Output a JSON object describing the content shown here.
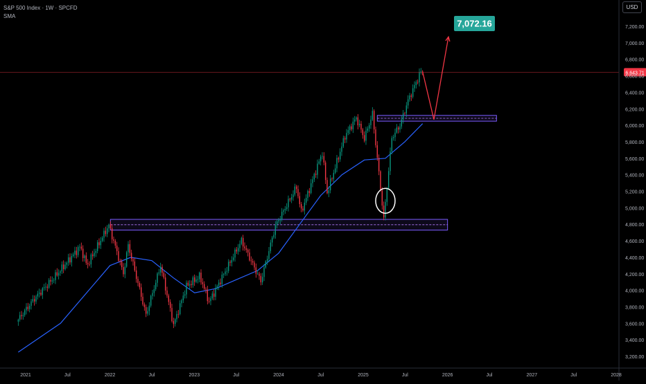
{
  "header": {
    "title": "S&P 500 Index · 1W · SPCFD",
    "indicator": "SMA",
    "currency": "USD"
  },
  "colors": {
    "background": "#000000",
    "up_candle": "#089981",
    "down_candle": "#f23645",
    "sma_line": "#2962ff",
    "zone_border": "#7b5cff",
    "arrow": "#f23645",
    "target_label": "#26a69a",
    "price_label": "#f23645"
  },
  "chart_data": {
    "type": "candlestick",
    "title": "S&P 500 Index · 1W · SPCFD",
    "xlabel": "",
    "ylabel": "",
    "ylim": [
      3150,
      7350
    ],
    "x_ticks": [
      "2021",
      "Jul",
      "2022",
      "Jul",
      "2023",
      "Jul",
      "2024",
      "Jul",
      "2025",
      "Jul",
      "2026",
      "Jul",
      "2027",
      "Jul",
      "2028"
    ],
    "y_ticks": [
      "3,200.00",
      "3,400.00",
      "3,600.00",
      "3,800.00",
      "4,000.00",
      "4,200.00",
      "4,400.00",
      "4,600.00",
      "4,800.00",
      "5,000.00",
      "5,200.00",
      "5,400.00",
      "5,600.00",
      "5,800.00",
      "6,000.00",
      "6,200.00",
      "6,400.00",
      "6,600.00",
      "6,800.00",
      "7,000.00",
      "7,200.00"
    ],
    "price_anchors": [
      [
        "2020-11-30",
        3620
      ],
      [
        "2021-02-15",
        3900
      ],
      [
        "2021-05-10",
        4150
      ],
      [
        "2021-09-01",
        4530
      ],
      [
        "2021-10-01",
        4300
      ],
      [
        "2022-01-03",
        4790
      ],
      [
        "2022-03-07",
        4200
      ],
      [
        "2022-03-28",
        4550
      ],
      [
        "2022-06-13",
        3700
      ],
      [
        "2022-08-15",
        4300
      ],
      [
        "2022-10-10",
        3580
      ],
      [
        "2022-12-05",
        4050
      ],
      [
        "2023-02-01",
        4170
      ],
      [
        "2023-03-13",
        3860
      ],
      [
        "2023-07-31",
        4600
      ],
      [
        "2023-10-23",
        4110
      ],
      [
        "2023-12-25",
        4780
      ],
      [
        "2024-03-25",
        5250
      ],
      [
        "2024-04-15",
        4950
      ],
      [
        "2024-07-15",
        5670
      ],
      [
        "2024-08-05",
        5180
      ],
      [
        "2024-10-21",
        5870
      ],
      [
        "2024-12-09",
        6090
      ],
      [
        "2025-01-13",
        5840
      ],
      [
        "2025-02-17",
        6140
      ],
      [
        "2025-03-10",
        5600
      ],
      [
        "2025-04-07",
        4860
      ],
      [
        "2025-05-12",
        5850
      ],
      [
        "2025-06-16",
        6000
      ],
      [
        "2025-07-21",
        6300
      ],
      [
        "2025-09-15",
        6650
      ]
    ],
    "sma_anchors": [
      [
        "2020-11-30",
        3250
      ],
      [
        "2021-06-01",
        3600
      ],
      [
        "2022-01-01",
        4300
      ],
      [
        "2022-04-01",
        4400
      ],
      [
        "2022-07-01",
        4360
      ],
      [
        "2022-10-03",
        4150
      ],
      [
        "2023-01-02",
        3970
      ],
      [
        "2023-04-03",
        4020
      ],
      [
        "2023-07-03",
        4130
      ],
      [
        "2023-10-02",
        4240
      ],
      [
        "2024-01-01",
        4450
      ],
      [
        "2024-04-01",
        4800
      ],
      [
        "2024-07-01",
        5150
      ],
      [
        "2024-10-01",
        5400
      ],
      [
        "2025-01-06",
        5580
      ],
      [
        "2025-04-07",
        5600
      ],
      [
        "2025-06-30",
        5800
      ],
      [
        "2025-09-15",
        6020
      ]
    ],
    "zones": [
      {
        "x_start": "2022-01-03",
        "x_end": "2026-01-01",
        "low": 4730,
        "high": 4860
      },
      {
        "x_start": "2025-03-03",
        "x_end": "2026-08-01",
        "low": 6050,
        "high": 6120
      }
    ],
    "current_price_line": 6643.71,
    "current_price_label": "6,643.71",
    "projection": {
      "points": [
        [
          "2025-09-15",
          6650
        ],
        [
          "2025-11-03",
          6070
        ],
        [
          "2026-01-05",
          7072.16
        ]
      ],
      "target_label": "7,072.16"
    },
    "highlight_circle": {
      "date": "2025-04-07",
      "value": 4900
    }
  }
}
